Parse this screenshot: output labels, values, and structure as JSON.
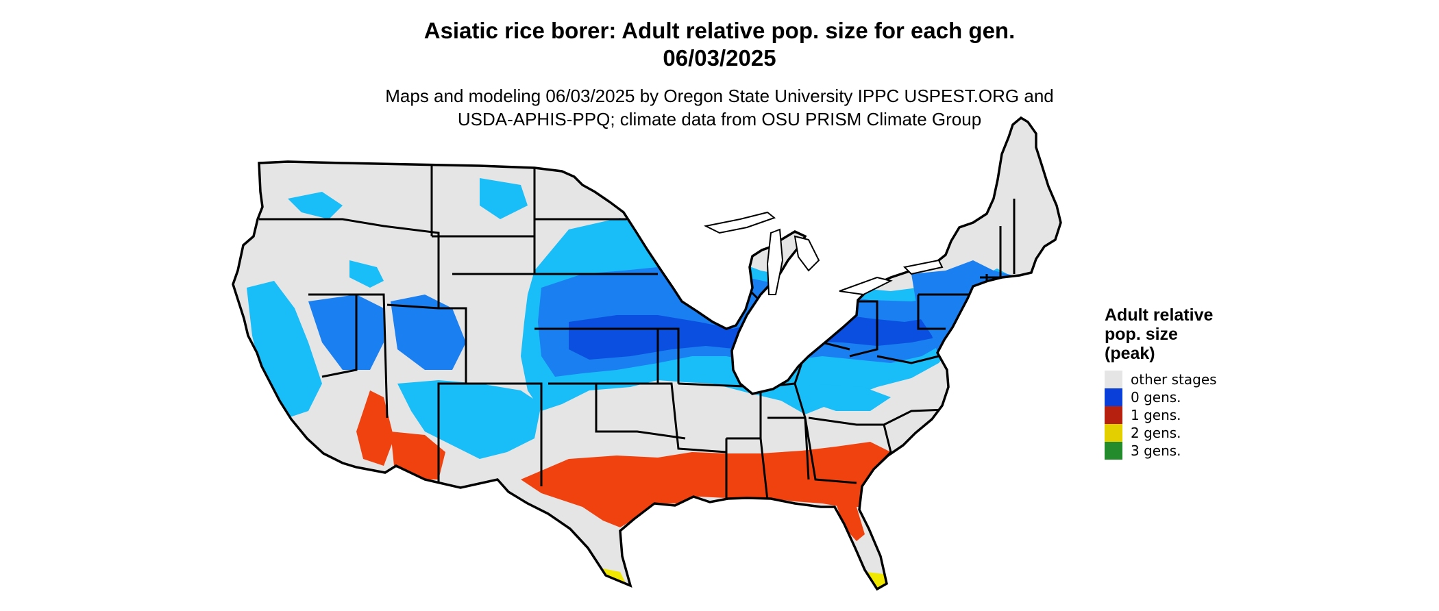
{
  "title": {
    "line1": "Asiatic rice borer: Adult relative pop. size for each gen.",
    "line2": "06/03/2025"
  },
  "subtitle": {
    "line1": "Maps and modeling 06/03/2025 by Oregon State University IPPC USPEST.ORG and",
    "line2": "USDA-APHIS-PPQ; climate data from OSU PRISM Climate Group"
  },
  "legend": {
    "title_lines": [
      "Adult relative",
      "pop. size",
      "(peak)"
    ],
    "items": [
      {
        "label": "other stages",
        "color": "#e5e5e5"
      },
      {
        "label": "0 gens.",
        "color": "#0b3fd9"
      },
      {
        "label": "1 gens.",
        "color": "#b5200f"
      },
      {
        "label": "2 gens.",
        "color": "#e3cf00"
      },
      {
        "label": "3 gens.",
        "color": "#238b2b"
      }
    ]
  },
  "map_colors": {
    "land": "#e5e5e5",
    "light_blue": "#19bdf7",
    "mid_blue": "#1a7ff0",
    "dark_blue": "#0b4fe0",
    "orange": "#f0420f",
    "yellow": "#f0e800",
    "border": "#000000"
  }
}
